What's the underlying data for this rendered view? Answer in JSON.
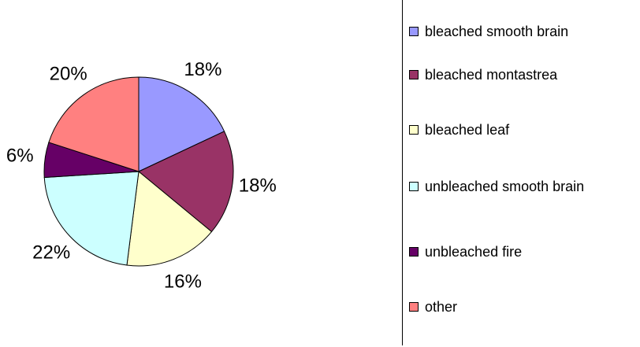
{
  "chart_data": {
    "type": "pie",
    "categories": [
      "bleached smooth brain",
      "bleached montastrea",
      "bleached leaf",
      "unbleached smooth brain",
      "unbleached fire",
      "other"
    ],
    "values": [
      18,
      18,
      16,
      22,
      6,
      20
    ],
    "value_labels": [
      "18%",
      "18%",
      "16%",
      "22%",
      "6%",
      "20%"
    ],
    "colors": [
      "#9999ff",
      "#993366",
      "#ffffcc",
      "#ccffff",
      "#660066",
      "#ff8080"
    ],
    "legend": "right"
  }
}
